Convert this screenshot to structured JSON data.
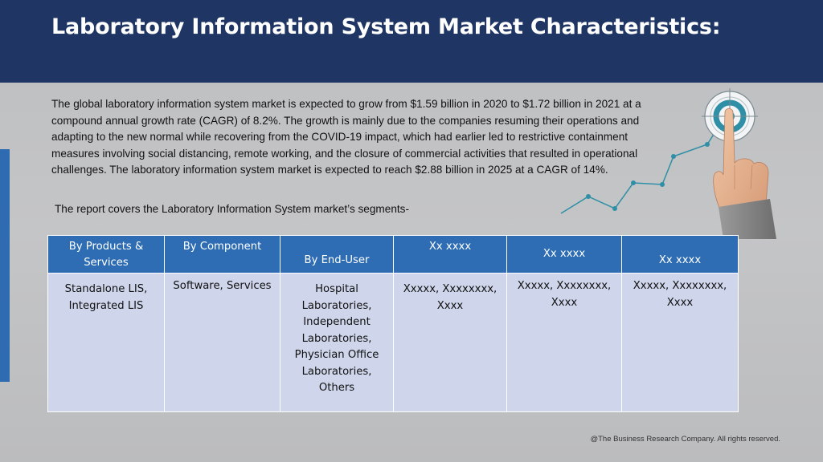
{
  "header": {
    "title": "Laboratory Information System Market Characteristics:",
    "background_color": "#1f3564"
  },
  "main": {
    "intro_text": "The global laboratory information system market is expected to grow from $1.59 billion in 2020 to $1.72 billion in 2021 at a compound annual growth rate (CAGR) of 8.2%. The growth is mainly due to the companies resuming their operations and adapting to the new normal while recovering from the COVID-19 impact, which had earlier led to restrictive containment measures involving social distancing, remote working, and the closure of commercial activities that resulted in operational challenges. The laboratory information system market is expected to reach $2.88 billion in 2025 at a CAGR of 14%.",
    "segments_intro": "The report covers the Laboratory Information System market’s segments-"
  },
  "illustration": {
    "icon": "target-touch-growth-icon",
    "accent_color": "#2e8fa6"
  },
  "table": {
    "header_color": "#2e6db4",
    "cell_color": "#cfd6ec",
    "columns": [
      "By Products & Services",
      "By Component",
      "By End-User",
      "Xx xxxx",
      "Xx xxxx",
      "Xx xxxx"
    ],
    "cells": [
      "Standalone LIS, Integrated LIS",
      "Software, Services",
      "Hospital Laboratories, Independent Laboratories, Physician Office Laboratories, Others",
      "Xxxxx, Xxxxxxxx, Xxxx",
      "Xxxxx, Xxxxxxxx, Xxxx",
      "Xxxxx, Xxxxxxxx, Xxxx"
    ]
  },
  "footer": {
    "copyright": "@The Business Research Company. All rights reserved."
  }
}
